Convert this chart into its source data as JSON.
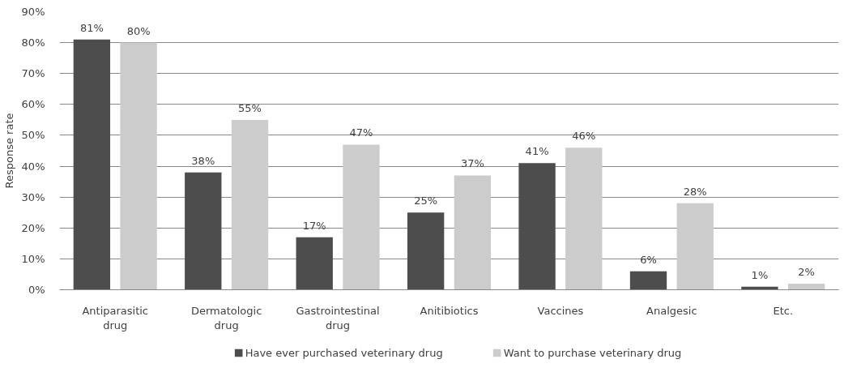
{
  "chart_data": {
    "type": "bar",
    "categories": [
      "Antiparasitic drug",
      "Dermatologic drug",
      "Gastrointestinal drug",
      "Anitibiotics",
      "Vaccines",
      "Analgesic",
      "Etc."
    ],
    "series": [
      {
        "name": "Have ever purchased veterinary drug",
        "color": "#4d4d4d",
        "values": [
          81,
          38,
          17,
          25,
          41,
          6,
          1
        ],
        "value_labels": [
          "81%",
          "38%",
          "17%",
          "25%",
          "41%",
          "6%",
          "1%"
        ]
      },
      {
        "name": "Want to purchase veterinary drug",
        "color": "#cccccc",
        "values": [
          80,
          55,
          47,
          37,
          46,
          28,
          2
        ],
        "value_labels": [
          "80%",
          "55%",
          "47%",
          "37%",
          "46%",
          "28%",
          "2%"
        ]
      }
    ],
    "ylabel": "Response rate",
    "ylim": [
      0,
      90
    ],
    "yticks": [
      {
        "value": 0,
        "label": "0%"
      },
      {
        "value": 10,
        "label": "10%"
      },
      {
        "value": 20,
        "label": "20%"
      },
      {
        "value": 30,
        "label": "30%"
      },
      {
        "value": 40,
        "label": "40%"
      },
      {
        "value": 50,
        "label": "50%"
      },
      {
        "value": 60,
        "label": "60%"
      },
      {
        "value": 70,
        "label": "70%"
      },
      {
        "value": 80,
        "label": "80%"
      },
      {
        "value": 90,
        "label": "90%"
      }
    ],
    "grid": "y",
    "legend": "bottom"
  }
}
